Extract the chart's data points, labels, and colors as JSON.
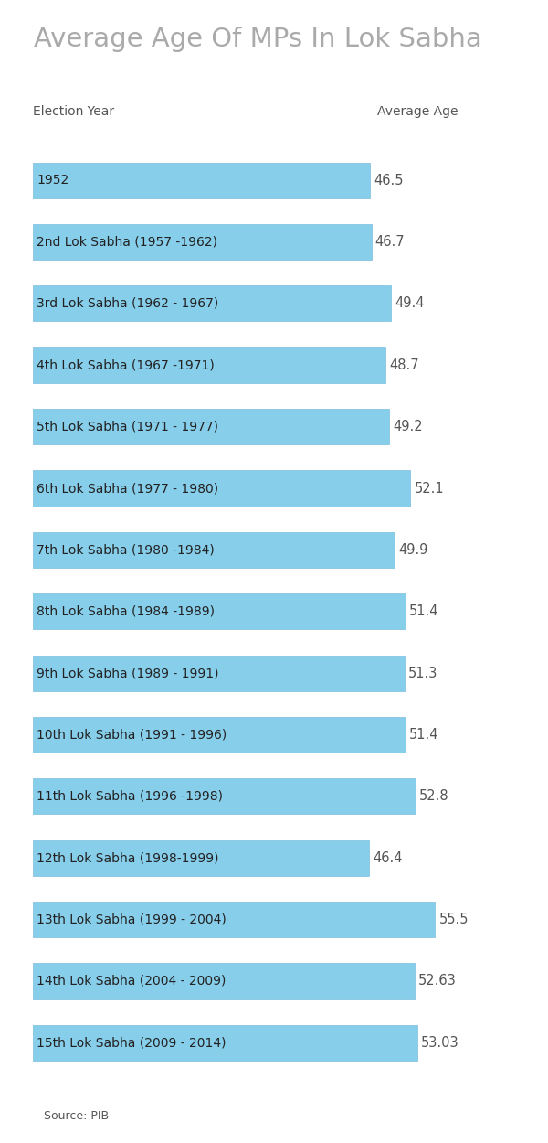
{
  "title": "Average Age Of MPs In Lok Sabha",
  "title_color": "#aaaaaa",
  "col_label_left": "Election Year",
  "col_label_right": "Average Age",
  "col_label_color": "#555555",
  "source_text": "Source: PIB",
  "categories": [
    "1952",
    "2nd Lok Sabha (1957 -1962)",
    "3rd Lok Sabha (1962 - 1967)",
    "4th Lok Sabha (1967 -1971)",
    "5th Lok Sabha (1971 - 1977)",
    "6th Lok Sabha (1977 - 1980)",
    "7th Lok Sabha (1980 -1984)",
    "8th Lok Sabha (1984 -1989)",
    "9th Lok Sabha (1989 - 1991)",
    "10th Lok Sabha (1991 - 1996)",
    "11th Lok Sabha (1996 -1998)",
    "12th Lok Sabha (1998-1999)",
    "13th Lok Sabha (1999 - 2004)",
    "14th Lok Sabha (2004 - 2009)",
    "15th Lok Sabha (2009 - 2014)"
  ],
  "values": [
    46.5,
    46.7,
    49.4,
    48.7,
    49.2,
    52.1,
    49.9,
    51.4,
    51.3,
    51.4,
    52.8,
    46.4,
    55.5,
    52.63,
    53.03
  ],
  "value_labels": [
    "46.5",
    "46.7",
    "49.4",
    "48.7",
    "49.2",
    "52.1",
    "49.9",
    "51.4",
    "51.3",
    "51.4",
    "52.8",
    "46.4",
    "55.5",
    "52.63",
    "53.03"
  ],
  "bar_color": "#87CEEB",
  "bar_edge_color": "#7bbddc",
  "text_color": "#222222",
  "value_color": "#555555",
  "background_color": "#ffffff",
  "xlim_max": 62,
  "bar_height": 0.58,
  "label_fontsize": 10,
  "value_fontsize": 10.5,
  "title_fontsize": 21,
  "col_label_fontsize": 10
}
